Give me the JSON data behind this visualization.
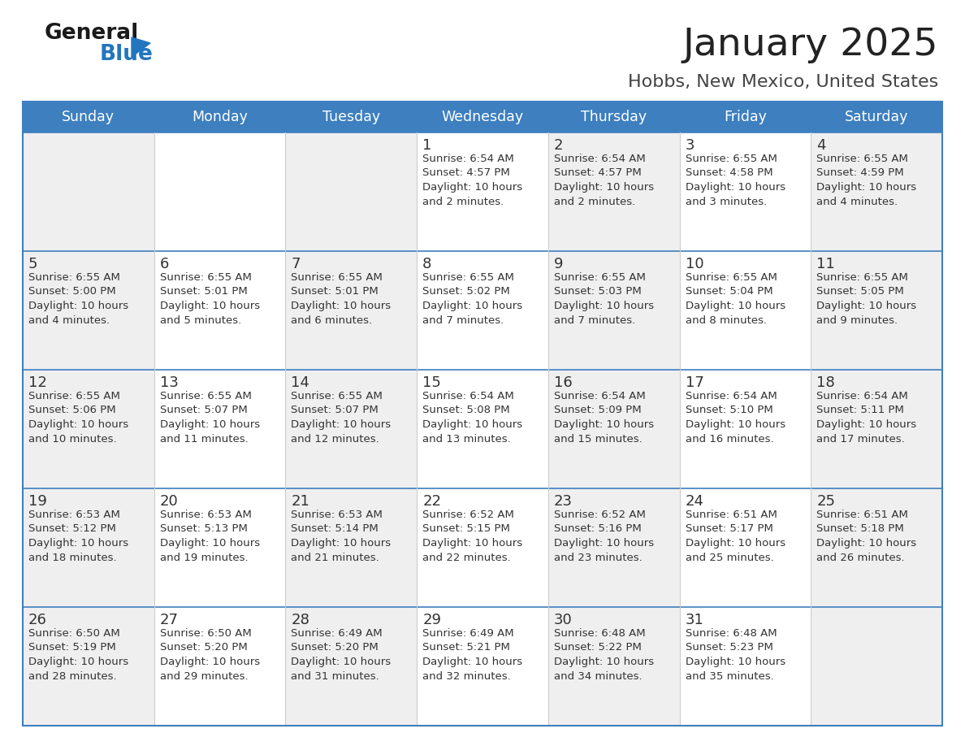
{
  "title": "January 2025",
  "subtitle": "Hobbs, New Mexico, United States",
  "days_of_week": [
    "Sunday",
    "Monday",
    "Tuesday",
    "Wednesday",
    "Thursday",
    "Friday",
    "Saturday"
  ],
  "header_bg": "#3d7fbf",
  "header_text": "#ffffff",
  "cell_bg_light": "#efefef",
  "cell_bg_white": "#ffffff",
  "border_color": "#3d7fbf",
  "row_line_color": "#3d7fbf",
  "col_line_color": "#cccccc",
  "text_color": "#333333",
  "day_num_color": "#333333",
  "title_color": "#222222",
  "subtitle_color": "#444444",
  "logo_general_color": "#1a1a1a",
  "logo_blue_color": "#2475bf",
  "calendar_data": [
    [
      {
        "day": "",
        "info": ""
      },
      {
        "day": "",
        "info": ""
      },
      {
        "day": "",
        "info": ""
      },
      {
        "day": "1",
        "info": "Sunrise: 6:54 AM\nSunset: 4:57 PM\nDaylight: 10 hours\nand 2 minutes."
      },
      {
        "day": "2",
        "info": "Sunrise: 6:54 AM\nSunset: 4:57 PM\nDaylight: 10 hours\nand 2 minutes."
      },
      {
        "day": "3",
        "info": "Sunrise: 6:55 AM\nSunset: 4:58 PM\nDaylight: 10 hours\nand 3 minutes."
      },
      {
        "day": "4",
        "info": "Sunrise: 6:55 AM\nSunset: 4:59 PM\nDaylight: 10 hours\nand 4 minutes."
      }
    ],
    [
      {
        "day": "5",
        "info": "Sunrise: 6:55 AM\nSunset: 5:00 PM\nDaylight: 10 hours\nand 4 minutes."
      },
      {
        "day": "6",
        "info": "Sunrise: 6:55 AM\nSunset: 5:01 PM\nDaylight: 10 hours\nand 5 minutes."
      },
      {
        "day": "7",
        "info": "Sunrise: 6:55 AM\nSunset: 5:01 PM\nDaylight: 10 hours\nand 6 minutes."
      },
      {
        "day": "8",
        "info": "Sunrise: 6:55 AM\nSunset: 5:02 PM\nDaylight: 10 hours\nand 7 minutes."
      },
      {
        "day": "9",
        "info": "Sunrise: 6:55 AM\nSunset: 5:03 PM\nDaylight: 10 hours\nand 7 minutes."
      },
      {
        "day": "10",
        "info": "Sunrise: 6:55 AM\nSunset: 5:04 PM\nDaylight: 10 hours\nand 8 minutes."
      },
      {
        "day": "11",
        "info": "Sunrise: 6:55 AM\nSunset: 5:05 PM\nDaylight: 10 hours\nand 9 minutes."
      }
    ],
    [
      {
        "day": "12",
        "info": "Sunrise: 6:55 AM\nSunset: 5:06 PM\nDaylight: 10 hours\nand 10 minutes."
      },
      {
        "day": "13",
        "info": "Sunrise: 6:55 AM\nSunset: 5:07 PM\nDaylight: 10 hours\nand 11 minutes."
      },
      {
        "day": "14",
        "info": "Sunrise: 6:55 AM\nSunset: 5:07 PM\nDaylight: 10 hours\nand 12 minutes."
      },
      {
        "day": "15",
        "info": "Sunrise: 6:54 AM\nSunset: 5:08 PM\nDaylight: 10 hours\nand 13 minutes."
      },
      {
        "day": "16",
        "info": "Sunrise: 6:54 AM\nSunset: 5:09 PM\nDaylight: 10 hours\nand 15 minutes."
      },
      {
        "day": "17",
        "info": "Sunrise: 6:54 AM\nSunset: 5:10 PM\nDaylight: 10 hours\nand 16 minutes."
      },
      {
        "day": "18",
        "info": "Sunrise: 6:54 AM\nSunset: 5:11 PM\nDaylight: 10 hours\nand 17 minutes."
      }
    ],
    [
      {
        "day": "19",
        "info": "Sunrise: 6:53 AM\nSunset: 5:12 PM\nDaylight: 10 hours\nand 18 minutes."
      },
      {
        "day": "20",
        "info": "Sunrise: 6:53 AM\nSunset: 5:13 PM\nDaylight: 10 hours\nand 19 minutes."
      },
      {
        "day": "21",
        "info": "Sunrise: 6:53 AM\nSunset: 5:14 PM\nDaylight: 10 hours\nand 21 minutes."
      },
      {
        "day": "22",
        "info": "Sunrise: 6:52 AM\nSunset: 5:15 PM\nDaylight: 10 hours\nand 22 minutes."
      },
      {
        "day": "23",
        "info": "Sunrise: 6:52 AM\nSunset: 5:16 PM\nDaylight: 10 hours\nand 23 minutes."
      },
      {
        "day": "24",
        "info": "Sunrise: 6:51 AM\nSunset: 5:17 PM\nDaylight: 10 hours\nand 25 minutes."
      },
      {
        "day": "25",
        "info": "Sunrise: 6:51 AM\nSunset: 5:18 PM\nDaylight: 10 hours\nand 26 minutes."
      }
    ],
    [
      {
        "day": "26",
        "info": "Sunrise: 6:50 AM\nSunset: 5:19 PM\nDaylight: 10 hours\nand 28 minutes."
      },
      {
        "day": "27",
        "info": "Sunrise: 6:50 AM\nSunset: 5:20 PM\nDaylight: 10 hours\nand 29 minutes."
      },
      {
        "day": "28",
        "info": "Sunrise: 6:49 AM\nSunset: 5:20 PM\nDaylight: 10 hours\nand 31 minutes."
      },
      {
        "day": "29",
        "info": "Sunrise: 6:49 AM\nSunset: 5:21 PM\nDaylight: 10 hours\nand 32 minutes."
      },
      {
        "day": "30",
        "info": "Sunrise: 6:48 AM\nSunset: 5:22 PM\nDaylight: 10 hours\nand 34 minutes."
      },
      {
        "day": "31",
        "info": "Sunrise: 6:48 AM\nSunset: 5:23 PM\nDaylight: 10 hours\nand 35 minutes."
      },
      {
        "day": "",
        "info": ""
      }
    ]
  ]
}
